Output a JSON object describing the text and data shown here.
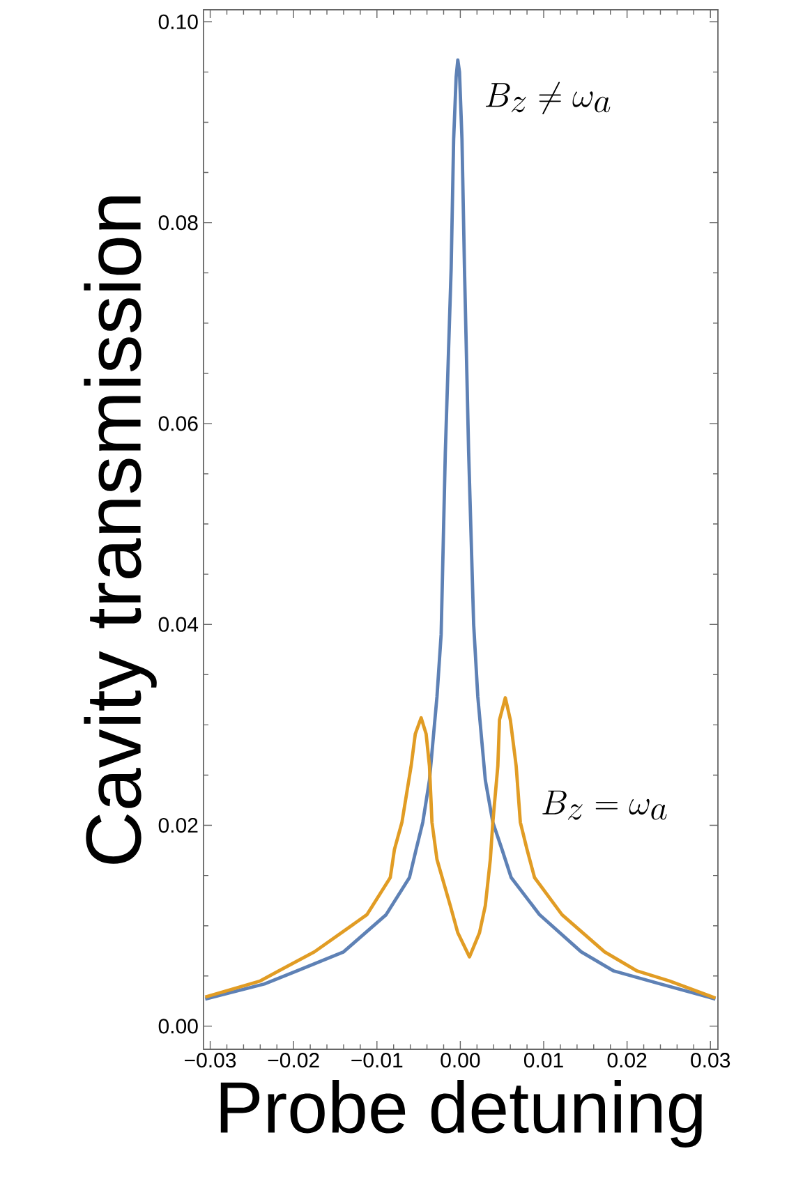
{
  "chart_data": {
    "type": "line",
    "xlabel": "Probe detuning",
    "ylabel": "Cavity transmission",
    "xlim": [
      -0.0308,
      0.0309
    ],
    "ylim": [
      -0.0023,
      0.1012
    ],
    "xticks": [
      {
        "value": -0.03,
        "label": "−0.03"
      },
      {
        "value": -0.02,
        "label": "−0.02"
      },
      {
        "value": -0.01,
        "label": "−0.01"
      },
      {
        "value": 0,
        "label": "0.00"
      },
      {
        "value": 0.01,
        "label": "0.01"
      },
      {
        "value": 0.02,
        "label": "0.02"
      },
      {
        "value": 0.03,
        "label": "0.03"
      }
    ],
    "yticks": [
      {
        "value": 0,
        "label": "0.00"
      },
      {
        "value": 0.02,
        "label": "0.02"
      },
      {
        "value": 0.04,
        "label": "0.04"
      },
      {
        "value": 0.06,
        "label": "0.06"
      },
      {
        "value": 0.08,
        "label": "0.08"
      },
      {
        "value": 0.1,
        "label": "0.10"
      }
    ],
    "series": [
      {
        "color": "#5e81b5",
        "x": [
          -0.0306,
          -0.0235,
          -0.0196,
          -0.014,
          -0.0089,
          -0.0061,
          -0.0053,
          -0.0045,
          -0.0037,
          -0.0028,
          -0.0023,
          -0.0018,
          -0.0011,
          -0.0008,
          -0.0005,
          -0.0003,
          -0.0001,
          0.0002,
          0.0005,
          0.001,
          0.0016,
          0.0021,
          0.003,
          0.0039,
          0.005,
          0.0061,
          0.0095,
          0.0145,
          0.0184,
          0.024,
          0.0306
        ],
        "values": [
          0.0027,
          0.0042,
          0.0055,
          0.0074,
          0.0111,
          0.0148,
          0.0176,
          0.0203,
          0.0245,
          0.0328,
          0.039,
          0.0571,
          0.0754,
          0.0883,
          0.0945,
          0.0962,
          0.095,
          0.0883,
          0.0754,
          0.0571,
          0.04,
          0.0328,
          0.0245,
          0.0203,
          0.0176,
          0.0148,
          0.0111,
          0.0074,
          0.0055,
          0.0042,
          0.0027
        ]
      },
      {
        "color": "#e19c24",
        "x": [
          -0.0306,
          -0.024,
          -0.0218,
          -0.0175,
          -0.0112,
          -0.0084,
          -0.0079,
          -0.007,
          -0.0059,
          -0.0054,
          -0.0047,
          -0.0041,
          -0.0037,
          -0.0034,
          -0.0028,
          -0.0012,
          -0.0003,
          0.0011,
          0.0023,
          0.003,
          0.0036,
          0.0039,
          0.0045,
          0.0047,
          0.0054,
          0.006,
          0.0067,
          0.0072,
          0.008,
          0.0089,
          0.0122,
          0.0173,
          0.0212,
          0.0251,
          0.0306
        ],
        "values": [
          0.0029,
          0.0045,
          0.0055,
          0.0074,
          0.0111,
          0.0148,
          0.0176,
          0.0203,
          0.0259,
          0.0291,
          0.0307,
          0.0291,
          0.0259,
          0.0203,
          0.0166,
          0.012,
          0.0093,
          0.0069,
          0.0093,
          0.012,
          0.0166,
          0.0203,
          0.0259,
          0.0305,
          0.0327,
          0.0305,
          0.0259,
          0.0203,
          0.0176,
          0.0148,
          0.0111,
          0.0074,
          0.0055,
          0.0045,
          0.0028
        ]
      }
    ],
    "annotations": [
      "B_z \\neq \\omega_a",
      "B_z = \\omega_a"
    ]
  }
}
